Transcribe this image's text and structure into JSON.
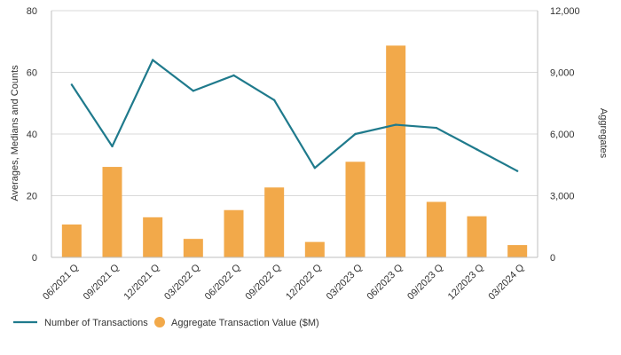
{
  "chart_data": {
    "type": "bar+line",
    "categories": [
      "06/2021 Q",
      "09/2021 Q",
      "12/2021 Q",
      "03/2022 Q",
      "06/2022 Q",
      "09/2022 Q",
      "12/2022 Q",
      "03/2023 Q",
      "06/2023 Q",
      "09/2023 Q",
      "12/2023 Q",
      "03/2024 Q"
    ],
    "series": [
      {
        "name": "Number of Transactions",
        "type": "line",
        "axis": "left",
        "color": "#1f7a8c",
        "values": [
          56,
          36,
          64,
          54,
          59,
          51,
          29,
          40,
          43,
          42,
          35,
          28
        ]
      },
      {
        "name": "Aggregate Transaction Value ($M)",
        "type": "bar",
        "axis": "right",
        "color": "#f2a94a",
        "values": [
          1600,
          4400,
          1950,
          900,
          2300,
          3400,
          750,
          4650,
          10300,
          2700,
          2000,
          600
        ]
      }
    ],
    "y_left": {
      "label": "Averages, Medians and Counts",
      "range": [
        0,
        80
      ],
      "ticks": [
        0,
        20,
        40,
        60,
        80
      ],
      "tick_labels": [
        "0",
        "20",
        "40",
        "60",
        "80"
      ]
    },
    "y_right": {
      "label": "Aggregates",
      "range": [
        0,
        12000
      ],
      "ticks": [
        0,
        3000,
        6000,
        9000,
        12000
      ],
      "tick_labels": [
        "0",
        "3,000",
        "6,000",
        "9,000",
        "12,000"
      ]
    },
    "grid": true,
    "legend_position": "bottom-left"
  }
}
